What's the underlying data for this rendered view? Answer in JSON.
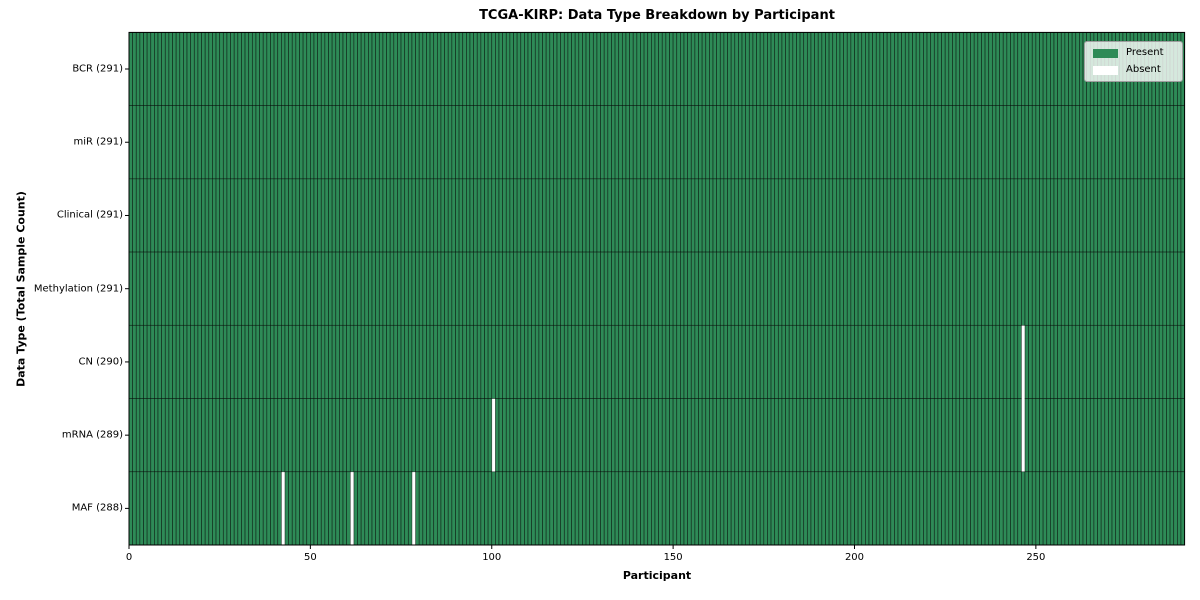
{
  "chart_data": {
    "type": "heatmap",
    "title": "TCGA-KIRP: Data Type Breakdown by Participant",
    "xlabel": "Participant",
    "ylabel": "Data Type (Total Sample Count)",
    "x_ticks": [
      0,
      50,
      100,
      150,
      200,
      250
    ],
    "xlim": [
      0,
      291
    ],
    "n_participants": 291,
    "grid": false,
    "legend_position": "upper-right",
    "rows": [
      {
        "label": "BCR (291)",
        "data_type": "BCR",
        "total": 291,
        "absent_participants": []
      },
      {
        "label": "miR (291)",
        "data_type": "miR",
        "total": 291,
        "absent_participants": []
      },
      {
        "label": "Clinical (291)",
        "data_type": "Clinical",
        "total": 291,
        "absent_participants": []
      },
      {
        "label": "Methylation (291)",
        "data_type": "Methylation",
        "total": 291,
        "absent_participants": []
      },
      {
        "label": "CN (290)",
        "data_type": "CN",
        "total": 290,
        "absent_participants": [
          246
        ]
      },
      {
        "label": "mRNA (289)",
        "data_type": "mRNA",
        "total": 289,
        "absent_participants": [
          100,
          246
        ]
      },
      {
        "label": "MAF (288)",
        "data_type": "MAF",
        "total": 288,
        "absent_participants": [
          42,
          61,
          78
        ]
      }
    ],
    "legend": [
      {
        "name": "present",
        "label": "Present",
        "color": "#2e8b57"
      },
      {
        "name": "absent",
        "label": "Absent",
        "color": "#ffffff"
      }
    ],
    "colors": {
      "present": "#2e8b57",
      "absent": "#ffffff",
      "cell_edge": "rgba(0,0,0,0.6)",
      "spine": "#000000",
      "text": "#000000"
    }
  }
}
